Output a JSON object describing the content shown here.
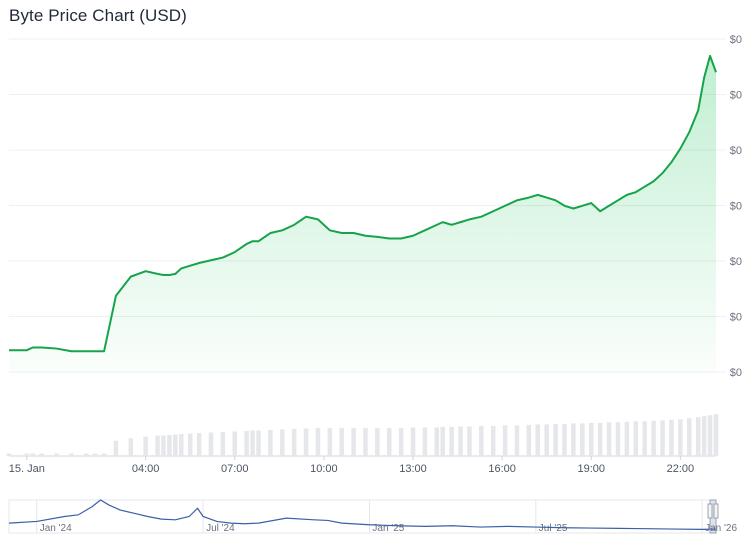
{
  "page": {
    "title": "Byte Price Chart (USD)"
  },
  "colors": {
    "price_line": "#16a34a",
    "area_fill": "#22c55e",
    "volume_bar": "#e5e7eb",
    "navigator_line": "#3b5fa8",
    "grid": "#eef0f3"
  },
  "chart_data": {
    "type": "line",
    "title": "Byte Price Chart (USD)",
    "xlabel": "",
    "ylabel": "",
    "y_tick_labels": [
      "$0",
      "$0",
      "$0",
      "$0",
      "$0",
      "$0",
      "$0"
    ],
    "x_tick_labels": [
      "15. Jan",
      "04:00",
      "07:00",
      "10:00",
      "13:00",
      "16:00",
      "19:00",
      "22:00"
    ],
    "x_tick_hours": [
      0,
      4,
      7,
      10,
      13,
      16,
      19,
      22
    ],
    "x_range_hours": [
      -0.6,
      23.2
    ],
    "y_range": [
      0,
      6
    ],
    "grid": true,
    "legend": "none",
    "series": [
      {
        "values_note": "",
        "x": [
          -0.6,
          0.0,
          0.2,
          0.5,
          1.0,
          1.5,
          2.0,
          2.3,
          2.6,
          3.0,
          3.5,
          4.0,
          4.4,
          4.6,
          4.8,
          5.0,
          5.2,
          5.5,
          5.8,
          6.2,
          6.6,
          7.0,
          7.4,
          7.6,
          7.8,
          8.2,
          8.6,
          9.0,
          9.4,
          9.8,
          10.2,
          10.6,
          11.0,
          11.4,
          11.8,
          12.2,
          12.6,
          13.0,
          13.4,
          13.8,
          14.0,
          14.3,
          14.6,
          14.9,
          15.3,
          15.7,
          16.1,
          16.5,
          16.9,
          17.2,
          17.5,
          17.8,
          18.1,
          18.4,
          18.7,
          19.0,
          19.3,
          19.6,
          19.9,
          20.2,
          20.5,
          20.8,
          21.1,
          21.4,
          21.7,
          22.0,
          22.3,
          22.6,
          22.8,
          23.0,
          23.2
        ],
        "values": [
          0.4,
          0.4,
          0.45,
          0.45,
          0.43,
          0.38,
          0.38,
          0.38,
          0.38,
          1.4,
          1.75,
          1.85,
          1.8,
          1.78,
          1.78,
          1.8,
          1.9,
          1.95,
          2.0,
          2.05,
          2.1,
          2.2,
          2.35,
          2.4,
          2.4,
          2.55,
          2.6,
          2.7,
          2.85,
          2.8,
          2.6,
          2.55,
          2.55,
          2.5,
          2.48,
          2.45,
          2.45,
          2.5,
          2.6,
          2.7,
          2.75,
          2.7,
          2.75,
          2.8,
          2.85,
          2.95,
          3.05,
          3.15,
          3.2,
          3.25,
          3.2,
          3.15,
          3.05,
          3.0,
          3.05,
          3.1,
          2.95,
          3.05,
          3.15,
          3.25,
          3.3,
          3.4,
          3.5,
          3.65,
          3.85,
          4.1,
          4.4,
          4.8,
          5.4,
          5.8,
          5.5
        ]
      }
    ],
    "volume_values": [
      0.05,
      0.05,
      0.05,
      0.05,
      0.05,
      0.05,
      0.05,
      0.05,
      0.05,
      0.3,
      0.35,
      0.38,
      0.4,
      0.4,
      0.41,
      0.42,
      0.43,
      0.44,
      0.45,
      0.46,
      0.47,
      0.48,
      0.49,
      0.5,
      0.5,
      0.51,
      0.52,
      0.53,
      0.54,
      0.55,
      0.55,
      0.55,
      0.55,
      0.55,
      0.55,
      0.55,
      0.55,
      0.56,
      0.56,
      0.56,
      0.57,
      0.57,
      0.58,
      0.58,
      0.59,
      0.59,
      0.6,
      0.6,
      0.61,
      0.62,
      0.62,
      0.63,
      0.63,
      0.64,
      0.64,
      0.65,
      0.65,
      0.66,
      0.66,
      0.67,
      0.68,
      0.68,
      0.69,
      0.7,
      0.71,
      0.72,
      0.74,
      0.76,
      0.78,
      0.8,
      0.82
    ],
    "navigator": {
      "x_tick_labels": [
        "Jan '24",
        "Jul '24",
        "Jan '25",
        "Jul '25",
        "Jan '26"
      ],
      "x_tick_months": [
        0,
        6,
        12,
        18,
        24
      ],
      "x_range_months": [
        -1,
        24.5
      ],
      "months": [
        -1,
        0,
        1,
        1.5,
        2,
        2.3,
        2.6,
        3,
        3.5,
        4,
        4.5,
        5,
        5.5,
        5.8,
        6,
        6.5,
        7,
        7.5,
        8,
        9,
        10,
        10.5,
        11,
        12,
        13,
        14,
        15,
        16,
        17,
        18,
        19,
        20,
        21,
        22,
        23,
        24,
        24.5
      ],
      "values": [
        0.3,
        0.35,
        0.5,
        0.55,
        0.8,
        1.0,
        0.85,
        0.7,
        0.6,
        0.5,
        0.42,
        0.4,
        0.5,
        0.75,
        0.5,
        0.35,
        0.3,
        0.28,
        0.3,
        0.45,
        0.4,
        0.38,
        0.3,
        0.25,
        0.22,
        0.2,
        0.22,
        0.18,
        0.2,
        0.18,
        0.16,
        0.15,
        0.14,
        0.13,
        0.12,
        0.11,
        0.12
      ]
    }
  }
}
